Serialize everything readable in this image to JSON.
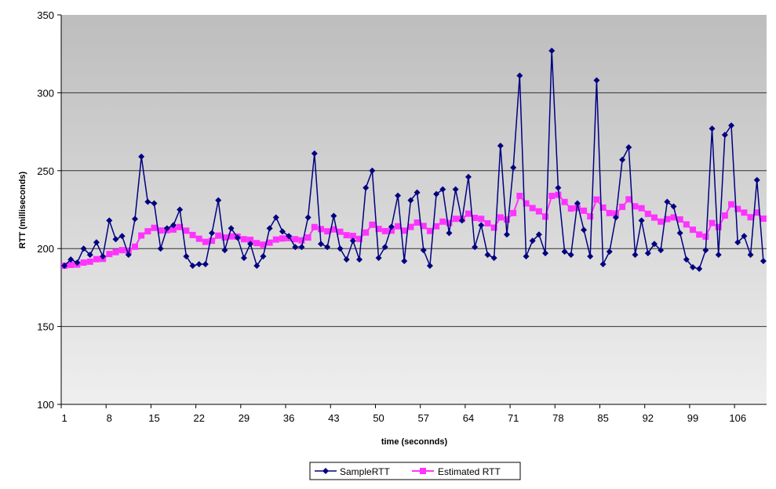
{
  "chart_data": {
    "type": "line",
    "title": "",
    "xlabel": "time (seconnds)",
    "ylabel": "RTT (milliseconds)",
    "ylim": [
      100,
      350
    ],
    "yticks": [
      100,
      150,
      200,
      250,
      300,
      350
    ],
    "xticks": [
      1,
      8,
      15,
      22,
      29,
      36,
      43,
      50,
      57,
      64,
      71,
      78,
      85,
      92,
      99,
      106
    ],
    "grid": true,
    "legend_position": "bottom",
    "x_start": 1,
    "series": [
      {
        "name": "SampleRTT",
        "color": "#000080",
        "marker": "diamond",
        "values": [
          189,
          193,
          191,
          200,
          196,
          204,
          195,
          218,
          206,
          208,
          196,
          219,
          259,
          230,
          229,
          200,
          213,
          215,
          225,
          195,
          189,
          190,
          190,
          210,
          231,
          199,
          213,
          207,
          194,
          203,
          189,
          195,
          213,
          220,
          211,
          208,
          201,
          201,
          220,
          261,
          203,
          201,
          221,
          200,
          193,
          205,
          193,
          239,
          250,
          194,
          201,
          214,
          234,
          192,
          231,
          236,
          199,
          189,
          235,
          238,
          210,
          238,
          218,
          246,
          201,
          215,
          196,
          194,
          266,
          209,
          252,
          311,
          195,
          205,
          209,
          197,
          327,
          239,
          198,
          196,
          229,
          212,
          195,
          308,
          190,
          198,
          220,
          257,
          265,
          196,
          218,
          197,
          203,
          199,
          230,
          227,
          210,
          193,
          188,
          187,
          199,
          277,
          196,
          273,
          279,
          204,
          208,
          196,
          244,
          192
        ]
      },
      {
        "name": "Estimated RTT",
        "color": "#ff33ff",
        "marker": "square",
        "values": [
          189,
          189.5,
          189.7,
          191,
          191.6,
          193.2,
          193.4,
          196.5,
          197.7,
          199,
          198.6,
          201.2,
          208.4,
          211.1,
          213.3,
          211.6,
          211.8,
          212.2,
          213.8,
          211.5,
          208.7,
          206.3,
          204.3,
          205,
          208.3,
          207.1,
          207.8,
          207.7,
          206,
          205.6,
          203.5,
          202.5,
          203.8,
          205.8,
          206.5,
          206.7,
          206,
          205.3,
          207.1,
          213.8,
          212.5,
          211.1,
          212.3,
          210.8,
          208.6,
          208.1,
          206.2,
          210.3,
          215.3,
          212.6,
          211.2,
          211.5,
          214.3,
          211.5,
          213.9,
          216.7,
          214.5,
          211.3,
          214.3,
          217.3,
          216.4,
          219.1,
          219,
          222.4,
          219.7,
          219.1,
          216.2,
          213.4,
          220,
          218.6,
          222.8,
          233.8,
          229,
          226,
          223.9,
          220.5,
          233.8,
          234.5,
          229.9,
          225.7,
          226.1,
          224.3,
          220.6,
          231.5,
          226.3,
          222.8,
          222.5,
          226.8,
          231.6,
          227.1,
          225.9,
          222.3,
          219.9,
          217.3,
          218.9,
          220,
          218.7,
          215.5,
          212.1,
          209,
          207.7,
          216.4,
          213.8,
          221.2,
          228.4,
          225.4,
          223.1,
          220.1,
          223.1,
          219.2
        ]
      }
    ]
  }
}
